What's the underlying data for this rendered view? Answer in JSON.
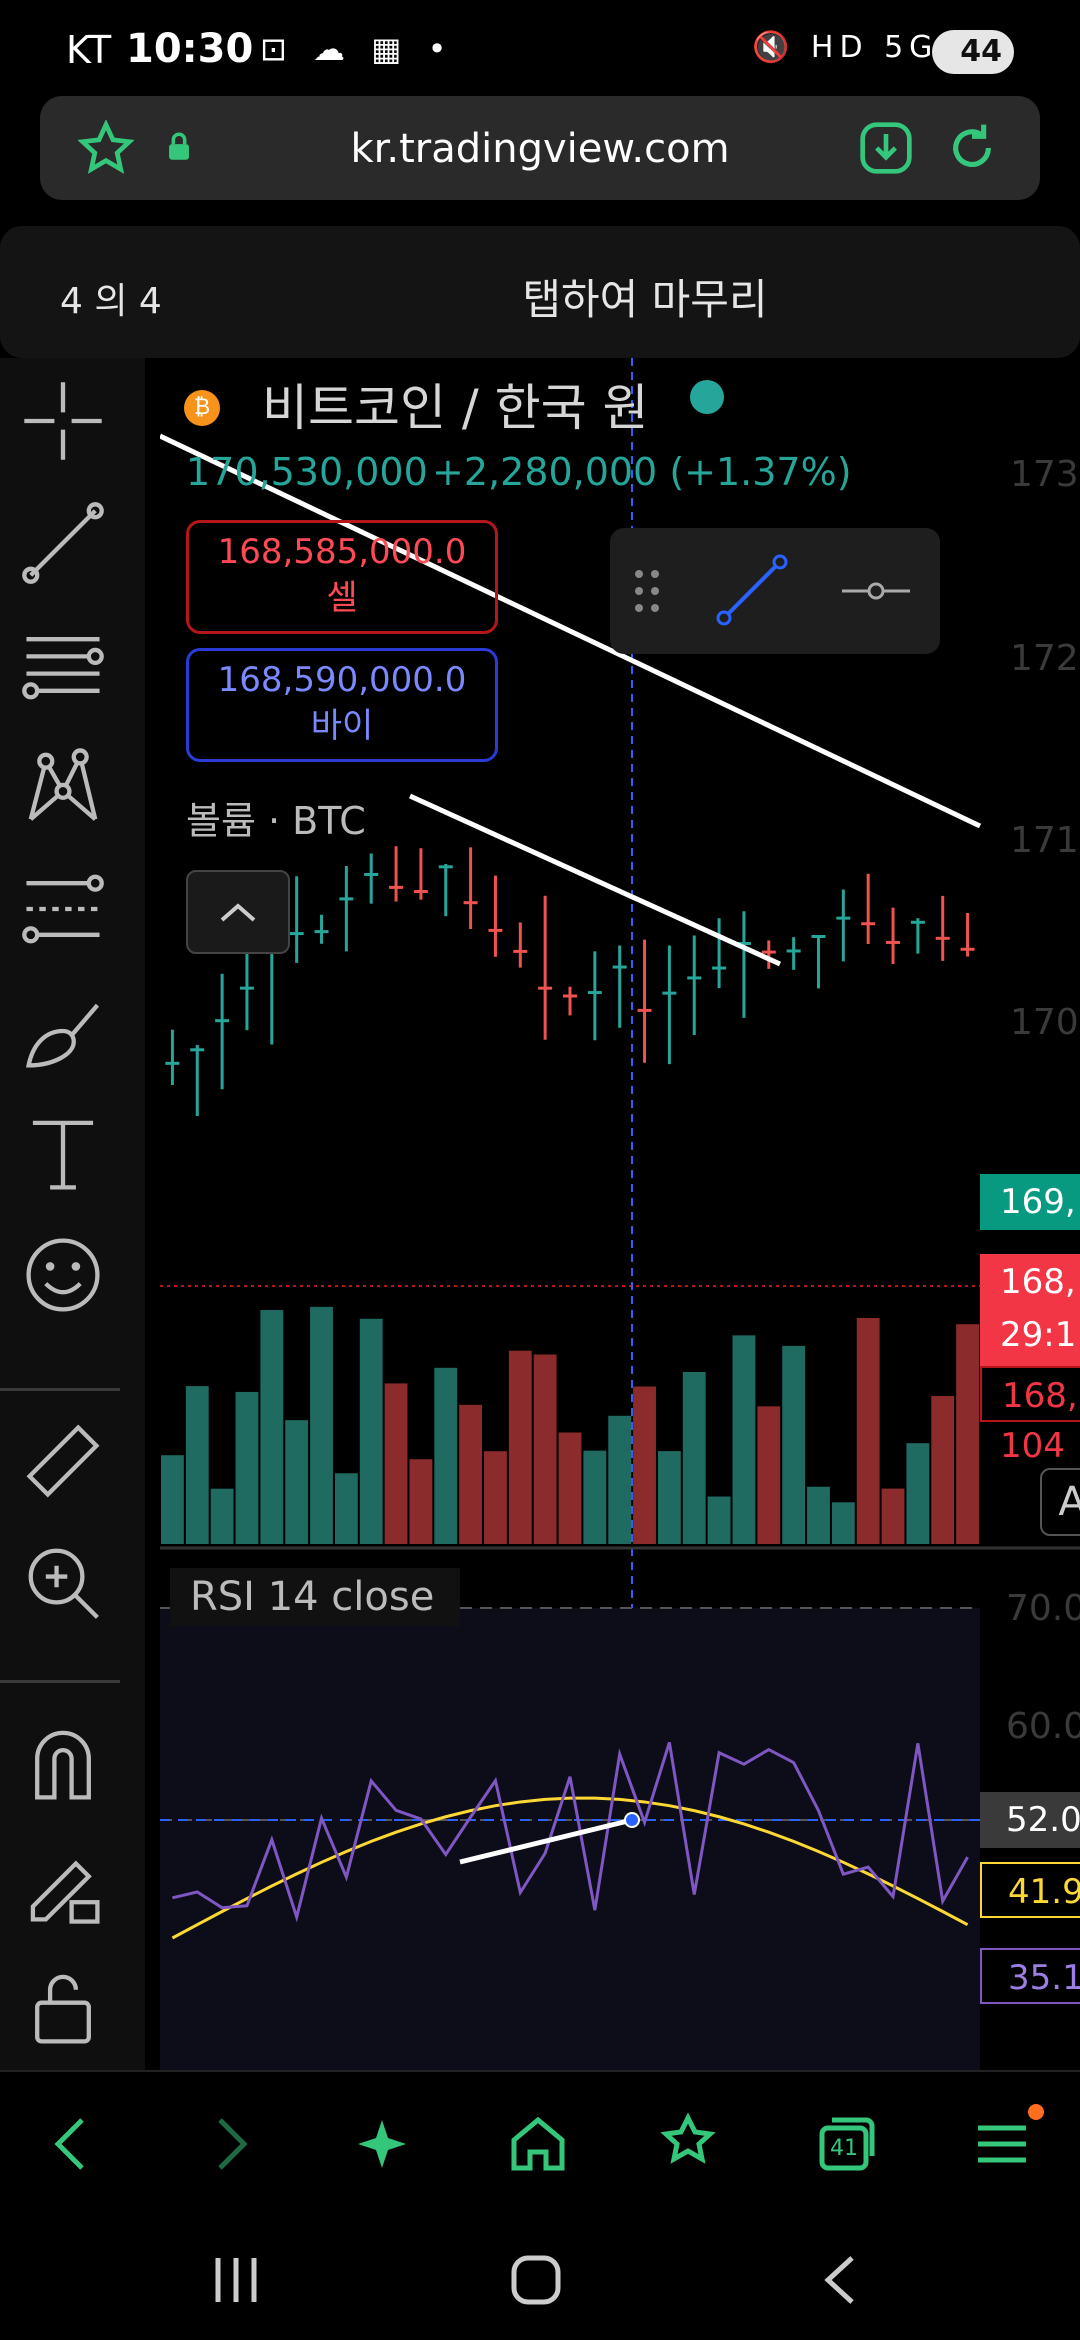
{
  "status": {
    "carrier": "KT",
    "time": "10:30",
    "left_icons": "⊡ ☁ ▦ •",
    "right_icons": "🔇 HD 5G .ıll",
    "battery": "44"
  },
  "browser": {
    "url": "kr.tradingview.com"
  },
  "banner": {
    "counter": "4 의 4",
    "title": "탭하여 마무리"
  },
  "symbol": {
    "name": "비트코인 / 한국 원",
    "price": "170,530,000",
    "change": "+2,280,000 (+1.37%)"
  },
  "orders": {
    "sell_price": "168,585,000.0",
    "sell_label": "셀",
    "buy_price": "168,590,000.0",
    "buy_label": "바이"
  },
  "volume_label": "볼륨 · BTC",
  "rsi_label": "RSI 14 close",
  "price_axis": [
    "173,",
    "172,",
    "171,",
    "170,"
  ],
  "price_tags": {
    "green": "169,",
    "red_1": "168,",
    "red_2": "29:1",
    "red_3": "168,",
    "red_4": "104"
  },
  "rsi_axis": [
    "70.0",
    "60.0"
  ],
  "rsi_tags": {
    "value": "52.0",
    "sma": "41.9",
    "rsi": "35.1"
  },
  "auto_label": "A",
  "colors": {
    "up": "#26a69a",
    "down": "#ef5350",
    "rsi": "#7e57c2",
    "rsi_ma": "#fdd835",
    "accent": "#2962ff"
  },
  "nav": {
    "tabs_count": "41"
  }
}
